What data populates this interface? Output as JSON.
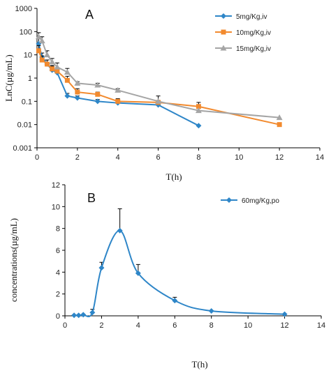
{
  "chart_data": [
    {
      "type": "line",
      "panel_label": "A",
      "xlabel": "T(h)",
      "ylabel": "LnC(µg/mL)",
      "y_scale": "log",
      "xlim": [
        0,
        14
      ],
      "ylim": [
        0.001,
        1000
      ],
      "xticks": [
        "0",
        "2",
        "4",
        "6",
        "8",
        "10",
        "12",
        "14"
      ],
      "yticks": [
        "0.001",
        "0.01",
        "0.1",
        "1",
        "10",
        "100",
        "1000"
      ],
      "legend_position": "top-right",
      "series": [
        {
          "name": "5mg/Kg,iv",
          "color": "#2e86c8",
          "marker": "diamond",
          "x": [
            0.083,
            0.25,
            0.5,
            0.75,
            1,
            1.5,
            2,
            3,
            4,
            6,
            8
          ],
          "y": [
            30,
            8,
            4,
            2.2,
            1.7,
            0.17,
            0.14,
            0.1,
            0.085,
            0.07,
            0.009
          ],
          "error": [
            30,
            4,
            2,
            1.0,
            0.9,
            0.05,
            0.03,
            0.02,
            0.02,
            0,
            0
          ]
        },
        {
          "name": "10mg/Kg,iv",
          "color": "#f28a2e",
          "marker": "square",
          "x": [
            0.083,
            0.25,
            0.5,
            0.75,
            1,
            1.5,
            2,
            3,
            4,
            6,
            8,
            12
          ],
          "y": [
            15,
            6,
            4,
            2.5,
            2,
            0.8,
            0.25,
            0.2,
            0.1,
            0.09,
            0.06,
            0.01
          ],
          "error": [
            10,
            3,
            2,
            1.0,
            0.8,
            0.4,
            0.1,
            0.05,
            0.03,
            0.08,
            0.03,
            0
          ]
        },
        {
          "name": "15mg/Kg,iv",
          "color": "#a5a5a5",
          "marker": "triangle",
          "x": [
            0.083,
            0.25,
            0.5,
            0.75,
            1,
            1.5,
            2,
            3,
            4,
            6,
            8,
            12
          ],
          "y": [
            60,
            40,
            10,
            5,
            3,
            1.8,
            0.6,
            0.5,
            0.3,
            0.1,
            0.04,
            0.02
          ],
          "error": [
            30,
            20,
            5,
            2,
            1.5,
            0.8,
            0.1,
            0.1,
            0.05,
            0,
            0,
            0
          ]
        }
      ]
    },
    {
      "type": "line",
      "panel_label": "B",
      "xlabel": "T(h)",
      "ylabel": "concentrations(µg/mL)",
      "xlim": [
        0,
        14
      ],
      "ylim": [
        0,
        12
      ],
      "xticks": [
        "0",
        "2",
        "4",
        "6",
        "8",
        "10",
        "12",
        "14"
      ],
      "yticks": [
        "0",
        "2",
        "4",
        "6",
        "8",
        "10",
        "12"
      ],
      "legend_position": "top-right",
      "series": [
        {
          "name": "60mg/Kg,po",
          "color": "#2e86c8",
          "marker": "diamond",
          "x": [
            0.5,
            0.75,
            1,
            1.5,
            2,
            3,
            4,
            6,
            8,
            12
          ],
          "y": [
            0.05,
            0.05,
            0.1,
            0.3,
            4.4,
            7.8,
            3.9,
            1.4,
            0.45,
            0.15
          ],
          "error": [
            0,
            0,
            0,
            0.3,
            0.5,
            2.0,
            0.8,
            0.3,
            0,
            0
          ]
        }
      ]
    }
  ]
}
